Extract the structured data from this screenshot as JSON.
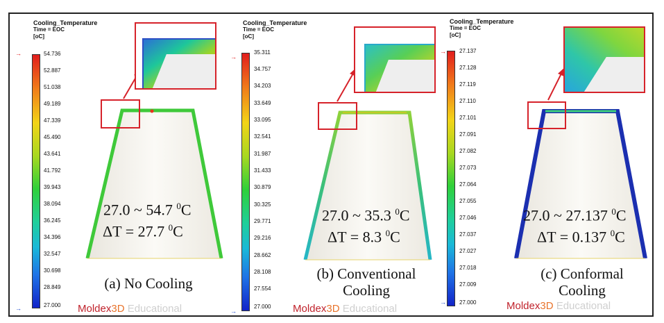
{
  "colors": {
    "accent": "#d6222a",
    "logo_red": "#c0222b",
    "logo_orange": "#e8742c",
    "logo_grey": "#cfcfcf"
  },
  "panels": [
    {
      "id": "a",
      "header": {
        "title": "Cooling_Temperature",
        "time": "Time = EOC",
        "unit": "[oC]"
      },
      "scale": [
        "54.736",
        "52.887",
        "51.038",
        "49.189",
        "47.339",
        "45.490",
        "43.641",
        "41.792",
        "39.943",
        "38.094",
        "36.245",
        "34.396",
        "32.547",
        "30.698",
        "28.849",
        "27.000"
      ],
      "range": {
        "line1_main": "27.0 ~ 54.7 ",
        "line1_sup": "0",
        "line1_end": "C",
        "line2_main": "ΔT = 27.7 ",
        "line2_sup": "0",
        "line2_end": "C"
      },
      "caption": "(a) No Cooling",
      "logo": {
        "a": "Moldex",
        "b": "3D",
        "c": " Educational"
      },
      "wall_color": "#3fc93a"
    },
    {
      "id": "b",
      "header": {
        "title": "Cooling_Temperature",
        "time": "Time = EOC",
        "unit": "[oC]"
      },
      "scale": [
        "35.311",
        "34.757",
        "34.203",
        "33.649",
        "33.095",
        "32.541",
        "31.987",
        "31.433",
        "30.879",
        "30.325",
        "29.771",
        "29.216",
        "28.662",
        "28.108",
        "27.554",
        "27.000"
      ],
      "range": {
        "line1_main": "27.0 ~ 35.3 ",
        "line1_sup": "0",
        "line1_end": "C",
        "line2_main": "ΔT = 8.3 ",
        "line2_sup": "0",
        "line2_end": "C"
      },
      "caption": "(b) Conventional Cooling",
      "logo": {
        "a": "Moldex",
        "b": "3D",
        "c": " Educational"
      },
      "wall_color": "#3bc07a"
    },
    {
      "id": "c",
      "header": {
        "title": "Cooling_Temperature",
        "time": "Time = EOC",
        "unit": "[oC]"
      },
      "scale": [
        "27.137",
        "27.128",
        "27.119",
        "27.110",
        "27.101",
        "27.091",
        "27.082",
        "27.073",
        "27.064",
        "27.055",
        "27.046",
        "27.037",
        "27.027",
        "27.018",
        "27.009",
        "27.000"
      ],
      "range": {
        "line1_main": "27.0 ~ 27.137 ",
        "line1_sup": "0",
        "line1_end": "C",
        "line2_main": "ΔT = 0.137 ",
        "line2_sup": "0",
        "line2_end": "C"
      },
      "caption": "(c) Conformal Cooling",
      "logo": {
        "a": "Moldex",
        "b": "3D",
        "c": " Educational"
      },
      "wall_color": "#1b2fb0"
    }
  ]
}
